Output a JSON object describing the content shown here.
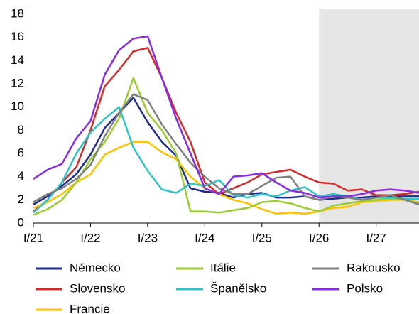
{
  "chart_data": {
    "type": "line",
    "categories": [
      "I/21",
      null,
      null,
      null,
      "I/22",
      null,
      null,
      null,
      "I/23",
      null,
      null,
      null,
      "I/24",
      null,
      null,
      null,
      "I/25",
      null,
      null,
      null,
      "I/26",
      null,
      null,
      null,
      "I/27",
      null,
      null,
      null
    ],
    "shade_from": "I/26",
    "ylim": [
      0,
      18
    ],
    "yticks": [
      0,
      2,
      4,
      6,
      8,
      10,
      12,
      14,
      16,
      18
    ],
    "grid": false,
    "legend": "bottom",
    "series": [
      {
        "name": "Německo",
        "color": "#1f2b8f",
        "values": [
          1.6,
          2.3,
          3.2,
          4.2,
          5.9,
          8.2,
          9.5,
          10.8,
          8.7,
          7.0,
          5.8,
          3.0,
          2.7,
          2.6,
          2.2,
          2.5,
          2.6,
          2.2,
          2.2,
          2.3,
          2.0,
          2.1,
          2.2,
          2.2,
          2.3,
          2.3,
          2.3,
          2.3
        ]
      },
      {
        "name": "Slovensko",
        "color": "#d42a2a",
        "values": [
          1.0,
          2.0,
          3.5,
          4.8,
          8.0,
          11.8,
          13.2,
          14.8,
          15.1,
          12.5,
          9.5,
          7.0,
          3.5,
          2.5,
          3.0,
          3.5,
          4.2,
          4.4,
          4.6,
          4.0,
          3.5,
          3.4,
          2.8,
          2.9,
          2.4,
          2.4,
          2.5,
          2.7
        ]
      },
      {
        "name": "Francie",
        "color": "#ffc000",
        "values": [
          1.3,
          1.8,
          2.5,
          3.5,
          4.2,
          5.9,
          6.5,
          7.0,
          7.0,
          6.1,
          5.5,
          4.0,
          3.0,
          2.5,
          2.0,
          1.7,
          1.2,
          0.8,
          0.9,
          0.8,
          1.0,
          1.3,
          1.4,
          1.8,
          1.9,
          2.0,
          2.0,
          1.8
        ]
      },
      {
        "name": "Itálie",
        "color": "#9acd32",
        "values": [
          0.7,
          1.2,
          2.0,
          3.5,
          5.5,
          7.0,
          9.0,
          12.5,
          9.5,
          8.0,
          6.0,
          1.0,
          1.0,
          0.9,
          1.1,
          1.3,
          1.8,
          1.9,
          1.7,
          1.3,
          1.0,
          1.5,
          1.7,
          1.9,
          2.0,
          2.1,
          2.0,
          1.7
        ]
      },
      {
        "name": "Španělsko",
        "color": "#2ec5c9",
        "values": [
          0.9,
          2.0,
          3.5,
          6.0,
          7.8,
          9.0,
          10.0,
          6.5,
          4.5,
          2.9,
          2.6,
          3.4,
          3.2,
          3.7,
          2.4,
          2.2,
          2.5,
          2.3,
          2.8,
          3.1,
          2.3,
          2.5,
          2.3,
          2.0,
          2.2,
          2.2,
          2.1,
          2.1
        ]
      },
      {
        "name": "Rakousko",
        "color": "#808080",
        "values": [
          1.8,
          2.5,
          3.0,
          3.8,
          5.0,
          7.5,
          9.5,
          11.1,
          10.6,
          8.5,
          6.8,
          5.2,
          4.0,
          3.0,
          2.5,
          2.5,
          3.2,
          3.9,
          4.0,
          2.3,
          2.0,
          2.3,
          2.2,
          2.0,
          2.2,
          2.4,
          2.0,
          1.6
        ]
      },
      {
        "name": "Polsko",
        "color": "#8a2be2",
        "values": [
          3.8,
          4.6,
          5.1,
          7.3,
          8.8,
          12.8,
          14.9,
          15.9,
          16.1,
          12.5,
          9.0,
          6.0,
          3.0,
          2.5,
          4.0,
          4.1,
          4.3,
          3.5,
          2.8,
          2.6,
          2.2,
          2.3,
          2.3,
          2.5,
          2.8,
          2.9,
          2.8,
          2.6
        ]
      }
    ]
  }
}
